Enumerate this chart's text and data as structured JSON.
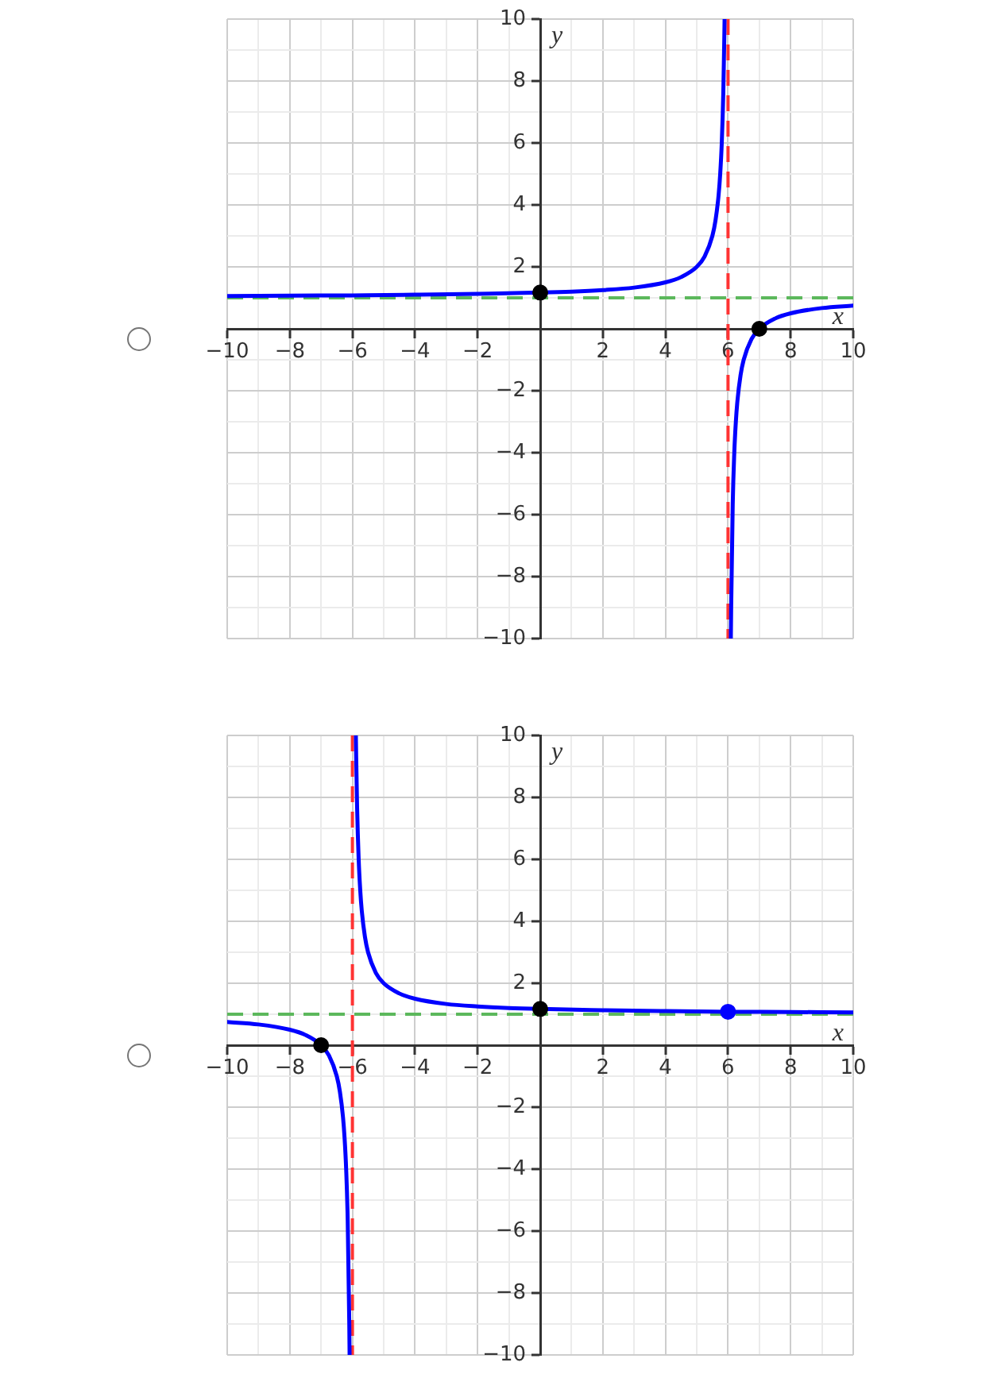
{
  "chart_data": [
    {
      "type": "line",
      "xlabel": "x",
      "ylabel": "y",
      "xlim": [
        -10,
        10
      ],
      "ylim": [
        -10,
        10
      ],
      "grid": true,
      "xticks": [
        {
          "value": -10,
          "label": "−10"
        },
        {
          "value": -9,
          "label": null
        },
        {
          "value": -8,
          "label": "−8"
        },
        {
          "value": -7,
          "label": null
        },
        {
          "value": -6,
          "label": "−6"
        },
        {
          "value": -5,
          "label": null
        },
        {
          "value": -4,
          "label": "−4"
        },
        {
          "value": -3,
          "label": null
        },
        {
          "value": -2,
          "label": "−2"
        },
        {
          "value": -1,
          "label": null
        },
        {
          "value": 0,
          "label": null
        },
        {
          "value": 1,
          "label": null
        },
        2,
        {
          "value": 3,
          "label": null
        },
        4,
        {
          "value": 5,
          "label": null
        },
        6,
        {
          "value": 7,
          "label": null
        },
        8,
        {
          "value": 9,
          "label": null
        },
        10
      ],
      "yticks": [
        {
          "value": -10,
          "label": "−10"
        },
        {
          "value": -9,
          "label": null
        },
        {
          "value": -8,
          "label": "−8"
        },
        {
          "value": -7,
          "label": null
        },
        {
          "value": -6,
          "label": "−6"
        },
        {
          "value": -5,
          "label": null
        },
        {
          "value": -4,
          "label": "−4"
        },
        {
          "value": -3,
          "label": null
        },
        {
          "value": -2,
          "label": "−2"
        },
        {
          "value": -1,
          "label": null
        },
        {
          "value": 0,
          "label": null
        },
        {
          "value": 1,
          "label": null
        },
        2,
        {
          "value": 3,
          "label": null
        },
        4,
        {
          "value": 5,
          "label": null
        },
        6,
        {
          "value": 7,
          "label": null
        },
        8,
        {
          "value": 9,
          "label": null
        },
        10
      ],
      "ref_lines": [
        {
          "axis": "x",
          "value": 6,
          "color": "#ff3333",
          "line_style": "dashed"
        },
        {
          "axis": "y",
          "value": 1,
          "color": "#5cb85c",
          "line_style": "dashed"
        }
      ],
      "series": [
        {
          "color": "#0000ff",
          "x": [
            -10,
            -8,
            -6,
            -4,
            -2,
            0,
            1,
            2,
            3,
            4,
            4.5,
            5,
            5.25,
            5.5,
            5.6,
            5.7,
            5.75,
            5.8,
            5.85,
            5.88,
            5.89,
            6,
            6.09,
            6.1,
            6.15,
            6.2,
            6.25,
            6.3,
            6.4,
            6.5,
            6.75,
            7,
            7.5,
            8,
            9,
            10
          ],
          "values": [
            1.06,
            1.07,
            1.08,
            1.1,
            1.13,
            1.17,
            1.2,
            1.25,
            1.33,
            1.5,
            1.67,
            2,
            2.33,
            3,
            3.5,
            4.33,
            5,
            6,
            7.67,
            9.33,
            10,
            null,
            -10,
            -9,
            -5.67,
            -4,
            -3,
            -2.33,
            -1.5,
            -1,
            -0.33,
            0,
            0.33,
            0.5,
            0.67,
            0.75
          ]
        },
        {
          "type": "scatter",
          "color": "#000000",
          "marker": "circle",
          "x": [
            0,
            7
          ],
          "values": [
            1.17,
            0
          ]
        }
      ]
    },
    {
      "type": "line",
      "xlabel": "x",
      "ylabel": "y",
      "xlim": [
        -10,
        10
      ],
      "ylim": [
        -10,
        10
      ],
      "grid": true,
      "xticks": [
        {
          "value": -10,
          "label": "−10"
        },
        {
          "value": -9,
          "label": null
        },
        {
          "value": -8,
          "label": "−8"
        },
        {
          "value": -7,
          "label": null
        },
        {
          "value": -6,
          "label": "−6"
        },
        {
          "value": -5,
          "label": null
        },
        {
          "value": -4,
          "label": "−4"
        },
        {
          "value": -3,
          "label": null
        },
        {
          "value": -2,
          "label": "−2"
        },
        {
          "value": -1,
          "label": null
        },
        {
          "value": 0,
          "label": null
        },
        {
          "value": 1,
          "label": null
        },
        2,
        {
          "value": 3,
          "label": null
        },
        4,
        {
          "value": 5,
          "label": null
        },
        6,
        {
          "value": 7,
          "label": null
        },
        8,
        {
          "value": 9,
          "label": null
        },
        10
      ],
      "yticks": [
        {
          "value": -10,
          "label": "−10"
        },
        {
          "value": -9,
          "label": null
        },
        {
          "value": -8,
          "label": "−8"
        },
        {
          "value": -7,
          "label": null
        },
        {
          "value": -6,
          "label": "−6"
        },
        {
          "value": -5,
          "label": null
        },
        {
          "value": -4,
          "label": "−4"
        },
        {
          "value": -3,
          "label": null
        },
        {
          "value": -2,
          "label": "−2"
        },
        {
          "value": -1,
          "label": null
        },
        {
          "value": 0,
          "label": null
        },
        {
          "value": 1,
          "label": null
        },
        2,
        {
          "value": 3,
          "label": null
        },
        4,
        {
          "value": 5,
          "label": null
        },
        6,
        {
          "value": 7,
          "label": null
        },
        8,
        {
          "value": 9,
          "label": null
        },
        10
      ],
      "ref_lines": [
        {
          "axis": "x",
          "value": -6,
          "color": "#ff3333",
          "line_style": "dashed"
        },
        {
          "axis": "y",
          "value": 1,
          "color": "#5cb85c",
          "line_style": "dashed"
        }
      ],
      "series": [
        {
          "color": "#0000ff",
          "x": [
            -10,
            -9,
            -8,
            -7.5,
            -7,
            -6.75,
            -6.5,
            -6.4,
            -6.3,
            -6.25,
            -6.2,
            -6.15,
            -6.1,
            -6.09,
            -6,
            -5.89,
            -5.88,
            -5.85,
            -5.8,
            -5.75,
            -5.7,
            -5.6,
            -5.5,
            -5.25,
            -5,
            -4.5,
            -4,
            -3,
            -2,
            -1,
            0,
            2,
            4,
            6,
            8,
            10
          ],
          "values": [
            0.75,
            0.67,
            0.5,
            0.33,
            0,
            -0.33,
            -1,
            -1.5,
            -2.33,
            -3,
            -4,
            -5.67,
            -9,
            -10,
            null,
            10,
            9.33,
            7.67,
            6,
            5,
            4.33,
            3.5,
            3,
            2.33,
            2,
            1.67,
            1.5,
            1.33,
            1.25,
            1.2,
            1.17,
            1.13,
            1.1,
            1.08,
            1.07,
            1.06
          ]
        },
        {
          "type": "scatter",
          "color": "#000000",
          "marker": "circle",
          "x": [
            -7,
            0
          ],
          "values": [
            0,
            1.17
          ]
        },
        {
          "type": "scatter",
          "color": "#0000ff",
          "marker": "circle",
          "x": [
            6
          ],
          "values": [
            1.08
          ]
        }
      ]
    }
  ]
}
